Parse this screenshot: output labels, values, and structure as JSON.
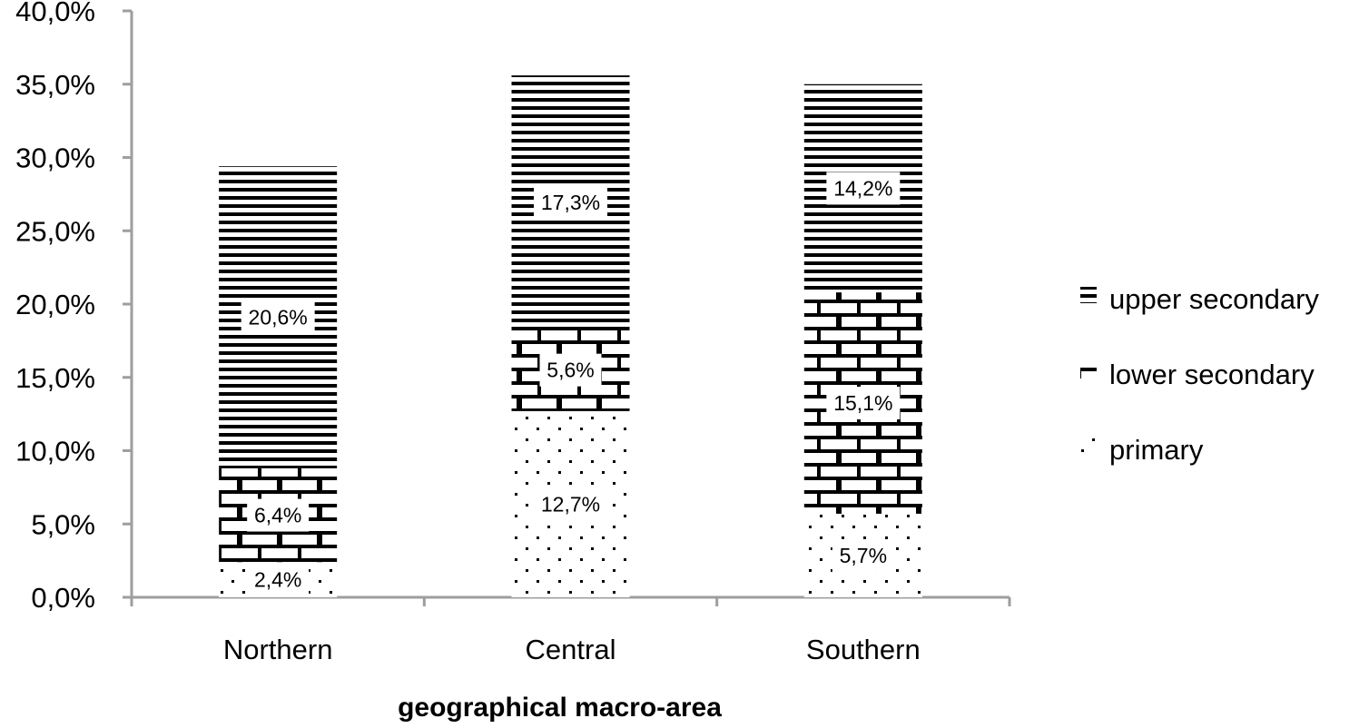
{
  "chart_data": {
    "type": "bar",
    "stacked": true,
    "categories": [
      "Northern",
      "Central",
      "Southern"
    ],
    "series": [
      {
        "name": "primary",
        "values": [
          2.4,
          12.7,
          5.7
        ],
        "pattern": "dots"
      },
      {
        "name": "lower secondary",
        "values": [
          6.4,
          5.6,
          15.1
        ],
        "pattern": "bricks"
      },
      {
        "name": "upper secondary",
        "values": [
          20.6,
          17.3,
          14.2
        ],
        "pattern": "horizontal-lines"
      }
    ],
    "data_labels": [
      [
        "2,4%",
        "12,7%",
        "5,7%"
      ],
      [
        "6,4%",
        "5,6%",
        "15,1%"
      ],
      [
        "20,6%",
        "17,3%",
        "14,2%"
      ]
    ],
    "y_ticks": [
      "0,0%",
      "5,0%",
      "10,0%",
      "15,0%",
      "20,0%",
      "25,0%",
      "30,0%",
      "35,0%",
      "40,0%"
    ],
    "ylim": [
      0,
      40
    ],
    "xlabel": "geographical macro-area",
    "ylabel": "",
    "title": "",
    "legend_position": "right",
    "grid": false,
    "colors": {
      "ink": "#000000",
      "axis": "#9e9e9e",
      "background": "#ffffff"
    }
  }
}
